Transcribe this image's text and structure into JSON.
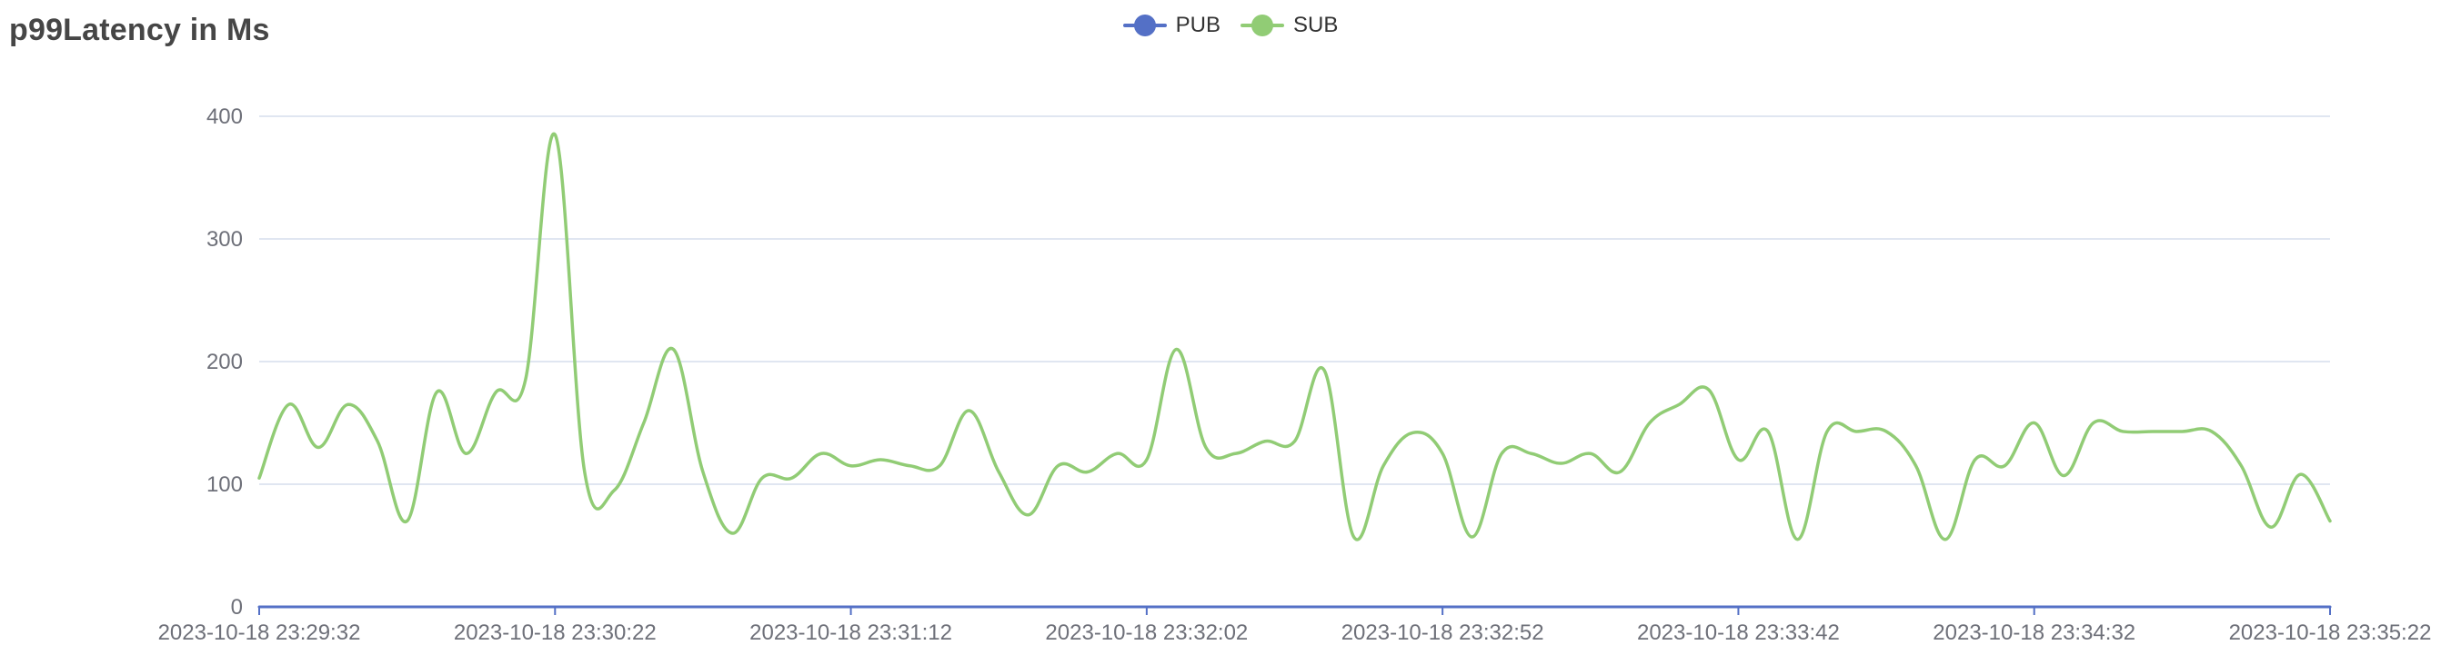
{
  "title": "p99Latency in Ms",
  "legend": [
    {
      "name": "PUB",
      "color": "#5470c6"
    },
    {
      "name": "SUB",
      "color": "#91cc75"
    }
  ],
  "chart_data": {
    "type": "line",
    "title": "p99Latency in Ms",
    "xlabel": "",
    "ylabel": "",
    "ylim": [
      0,
      400
    ],
    "y_ticks": [
      0,
      100,
      200,
      300,
      400
    ],
    "x_tick_labels": [
      "2023-10-18 23:29:32",
      "2023-10-18 23:30:22",
      "2023-10-18 23:31:12",
      "2023-10-18 23:32:02",
      "2023-10-18 23:32:52",
      "2023-10-18 23:33:42",
      "2023-10-18 23:34:32",
      "2023-10-18 23:35:22"
    ],
    "x_range": [
      "2023-10-18 23:29:32",
      "2023-10-18 23:35:22"
    ],
    "grid": true,
    "smooth": true,
    "legend_position": "top-center",
    "series": [
      {
        "name": "PUB",
        "color": "#5470c6",
        "x_seconds_offset": [
          0,
          350
        ],
        "values": [
          0,
          0
        ]
      },
      {
        "name": "SUB",
        "color": "#91cc75",
        "x_seconds_offset": [
          0,
          5,
          10,
          15,
          20,
          25,
          30,
          35,
          40,
          45,
          50,
          55,
          60,
          65,
          70,
          75,
          80,
          85,
          90,
          95,
          100,
          105,
          110,
          115,
          120,
          125,
          130,
          135,
          140,
          145,
          150,
          155,
          160,
          165,
          170,
          175,
          180,
          185,
          190,
          195,
          200,
          205,
          210,
          215,
          220,
          225,
          230,
          235,
          240,
          245,
          250,
          255,
          260,
          265,
          270,
          275,
          280,
          285,
          290,
          295,
          300,
          305,
          310,
          315,
          320,
          325,
          330,
          335,
          340,
          345,
          350
        ],
        "values": [
          105,
          165,
          130,
          165,
          135,
          70,
          175,
          125,
          175,
          185,
          385,
          110,
          95,
          150,
          210,
          110,
          60,
          105,
          105,
          125,
          115,
          120,
          115,
          115,
          160,
          110,
          75,
          115,
          110,
          125,
          120,
          210,
          130,
          125,
          135,
          135,
          193,
          57,
          115,
          142,
          125,
          57,
          125,
          125,
          117,
          125,
          110,
          150,
          165,
          177,
          120,
          143,
          55,
          143,
          143,
          143,
          115,
          55,
          120,
          115,
          150,
          107,
          150,
          143,
          143,
          143,
          143,
          115,
          65,
          108,
          70
        ]
      }
    ]
  }
}
